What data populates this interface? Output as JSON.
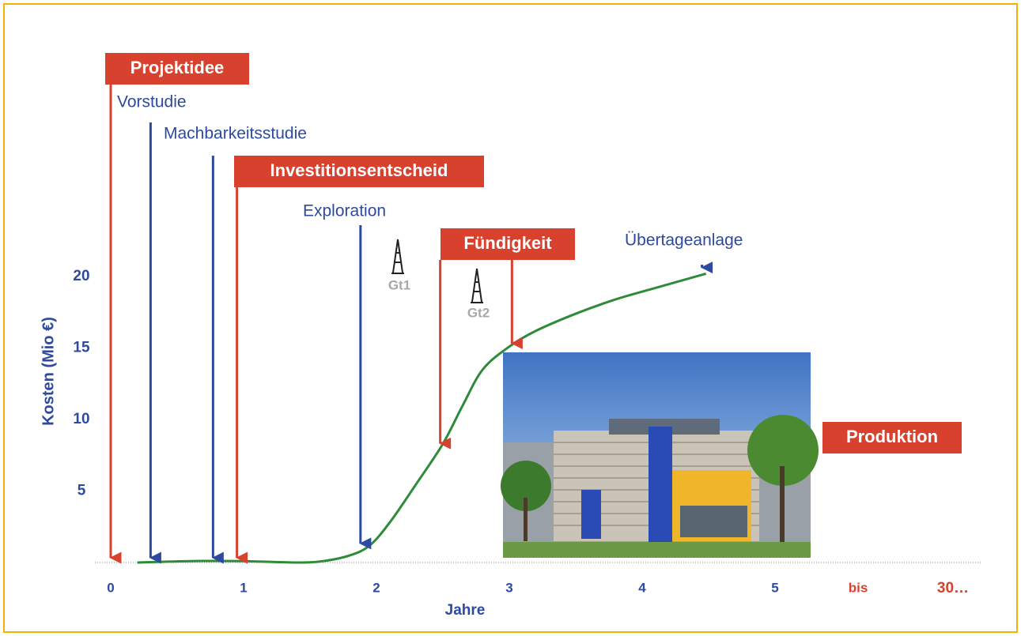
{
  "chart_data": {
    "type": "line",
    "y_label": "Kosten (Mio €)",
    "x_label": "Jahre",
    "xlim": [
      0,
      5
    ],
    "ylim": [
      0,
      20
    ],
    "xticks": [
      0,
      1,
      2,
      3,
      4,
      5
    ],
    "yticks": [
      5,
      10,
      15,
      20
    ],
    "x_extra_labels": [
      "bis",
      "30…"
    ],
    "series": [
      {
        "color": "#2e8b3a",
        "x": [
          0.2,
          0.6,
          1,
          1.4,
          1.6,
          1.8,
          1.95,
          2.1,
          2.3,
          2.5,
          2.65,
          2.8,
          3.0,
          3.2,
          3.5,
          3.8,
          4.1,
          4.48
        ],
        "values": [
          0,
          0.1,
          0.1,
          0,
          0.1,
          0.5,
          1.2,
          2.8,
          5.5,
          8.3,
          11,
          13.5,
          15.1,
          16.2,
          17.4,
          18.4,
          19.2,
          20.2
        ]
      }
    ],
    "annotations": [
      {
        "text": "Projektidee",
        "style": "box",
        "x": [
          0
        ],
        "y": [
          0
        ]
      },
      {
        "text": "Vorstudie",
        "style": "label",
        "x": [
          0.3
        ],
        "y": [
          0
        ]
      },
      {
        "text": "Machbarkeitsstudie",
        "style": "label",
        "x": [
          0.77
        ],
        "y": [
          0
        ]
      },
      {
        "text": "Investitionsentscheid",
        "style": "box",
        "x": [
          0.95
        ],
        "y": [
          0
        ]
      },
      {
        "text": "Exploration",
        "style": "label",
        "x": [
          1.88
        ],
        "y": [
          1
        ]
      },
      {
        "text": "Fündigkeit",
        "style": "box",
        "x": [
          2.48,
          3.02
        ],
        "y": [
          8,
          15
        ]
      },
      {
        "text": "Übertageanlage",
        "style": "label",
        "x": [
          4.45
        ],
        "y": [
          20.3
        ]
      },
      {
        "text": "Produktion",
        "style": "box",
        "x": [],
        "y": []
      }
    ],
    "wells": [
      "Gt1",
      "Gt2"
    ]
  }
}
